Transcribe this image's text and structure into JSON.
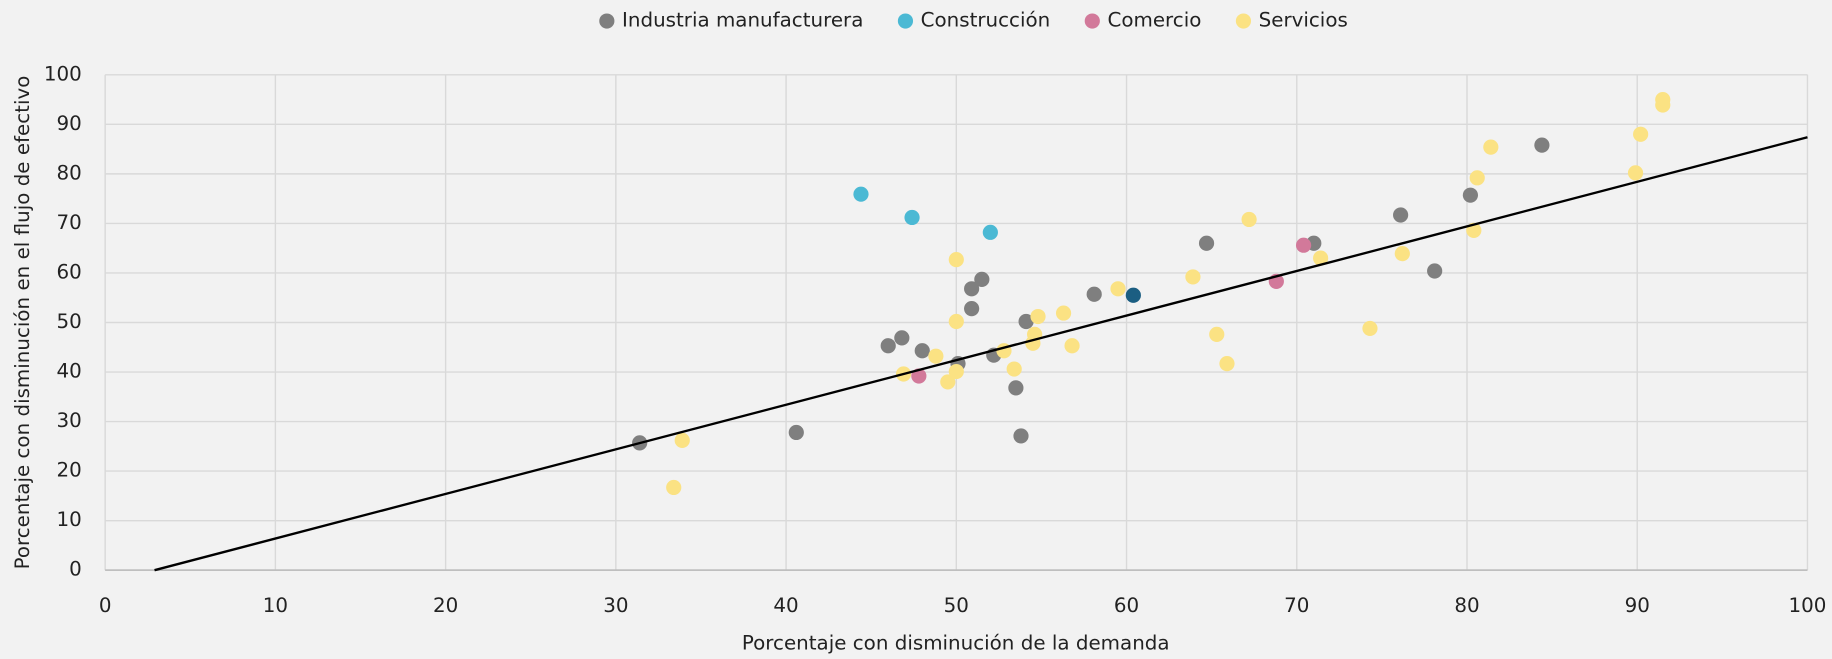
{
  "chart_data": {
    "type": "scatter",
    "x_label": "Porcentaje con disminución de la demanda",
    "y_label": "Porcentaje con disminución en el flujo de efectivo",
    "xlim": [
      0,
      100
    ],
    "ylim": [
      0,
      100
    ],
    "xticks": [
      0,
      10,
      20,
      30,
      40,
      50,
      60,
      70,
      80,
      90,
      100
    ],
    "yticks": [
      0,
      10,
      20,
      30,
      40,
      50,
      60,
      70,
      80,
      90,
      100
    ],
    "grid": true,
    "legend": "top",
    "series": [
      {
        "name": "Industria manufacturera",
        "color": "#7f7f7f",
        "x": [
          31.4,
          40.6,
          46.0,
          46.8,
          48.0,
          50.1,
          50.9,
          50.9,
          51.5,
          52.2,
          53.5,
          53.8,
          54.1,
          58.1,
          64.7,
          71.0,
          76.1,
          78.1,
          80.2,
          84.4
        ],
        "values": [
          25.7,
          27.8,
          45.3,
          46.9,
          44.3,
          41.7,
          52.8,
          56.8,
          58.7,
          43.4,
          36.8,
          27.1,
          50.2,
          55.7,
          66.0,
          66.0,
          71.7,
          60.4,
          75.7,
          85.8
        ]
      },
      {
        "name": "Construcción",
        "color": "#4bb9d4",
        "x": [
          44.4,
          47.4,
          52.0
        ],
        "values": [
          75.9,
          71.2,
          68.2
        ]
      },
      {
        "name": "Comercio",
        "color": "#d2799a",
        "x": [
          47.8,
          68.8,
          70.4
        ],
        "values": [
          39.2,
          58.3,
          65.6
        ]
      },
      {
        "name": "Servicios",
        "color": "#fbe283",
        "x": [
          33.4,
          33.9,
          46.9,
          48.8,
          49.5,
          50.0,
          50.0,
          50.0,
          52.8,
          53.4,
          54.5,
          54.6,
          54.8,
          56.3,
          56.8,
          59.5,
          63.9,
          65.3,
          65.9,
          67.2,
          71.4,
          74.3,
          76.2,
          80.4,
          80.6,
          81.4,
          89.9,
          90.2,
          91.5,
          91.5
        ],
        "values": [
          16.7,
          26.2,
          39.6,
          43.2,
          38.0,
          50.2,
          62.7,
          40.1,
          44.3,
          40.6,
          45.8,
          47.6,
          51.2,
          51.9,
          45.3,
          56.8,
          59.2,
          47.6,
          41.7,
          70.8,
          63.0,
          48.8,
          63.9,
          68.6,
          79.2,
          85.4,
          80.2,
          88.0,
          93.9,
          95.0
        ]
      }
    ],
    "highlight_point": {
      "x": 60.4,
      "y": 55.5,
      "color": "#1b5e82"
    },
    "trend_line": {
      "x": [
        2.9,
        100
      ],
      "y": [
        0,
        87.4
      ],
      "color": "#000000"
    }
  }
}
